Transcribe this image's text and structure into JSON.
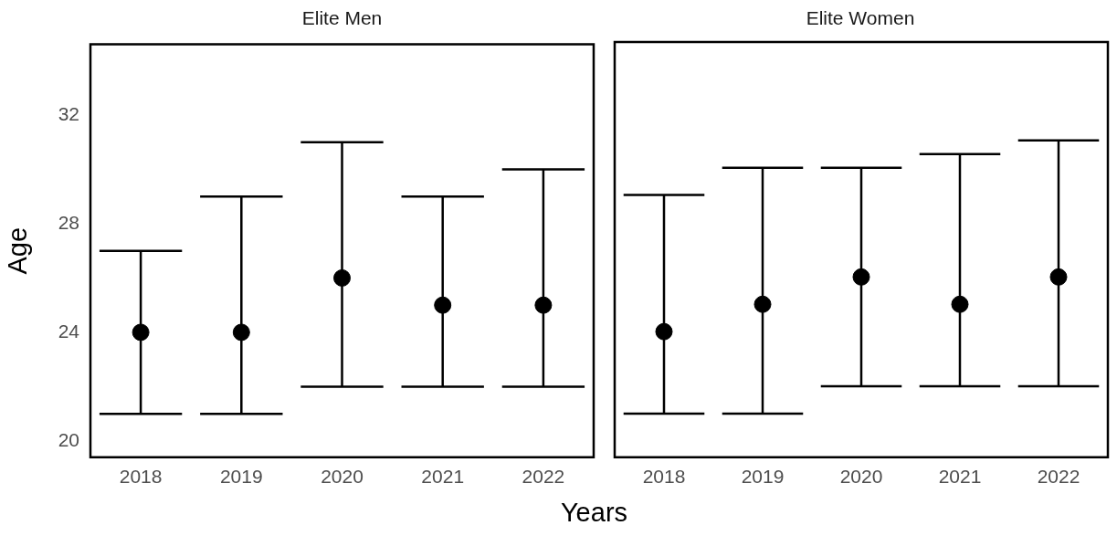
{
  "chart_data": [
    {
      "type": "scatter",
      "title": "Elite Men",
      "ylabel": "Age",
      "xlabel": "Years",
      "categories": [
        "2018",
        "2019",
        "2020",
        "2021",
        "2022"
      ],
      "values": [
        24,
        24,
        26,
        25,
        25
      ],
      "errors": [
        [
          21,
          27
        ],
        [
          21,
          29
        ],
        [
          22,
          31
        ],
        [
          22,
          29
        ],
        [
          22,
          30
        ]
      ],
      "color": "#000000",
      "marker": "circle",
      "ylim": [
        19.4,
        34.6
      ],
      "yticks": [
        20,
        24,
        28,
        32
      ]
    },
    {
      "type": "scatter",
      "title": "Elite Women",
      "categories": [
        "2018",
        "2019",
        "2020",
        "2021",
        "2022"
      ],
      "values": [
        24,
        25,
        26,
        25,
        26
      ],
      "errors": [
        [
          21,
          29
        ],
        [
          21,
          30
        ],
        [
          22,
          30
        ],
        [
          22,
          30.5
        ],
        [
          22,
          31
        ]
      ],
      "color": "#000000",
      "marker": "circle",
      "ylim": [
        19.4,
        34.6
      ],
      "yticks": [
        20,
        24,
        28,
        32
      ],
      "tick_labels": "x"
    }
  ]
}
